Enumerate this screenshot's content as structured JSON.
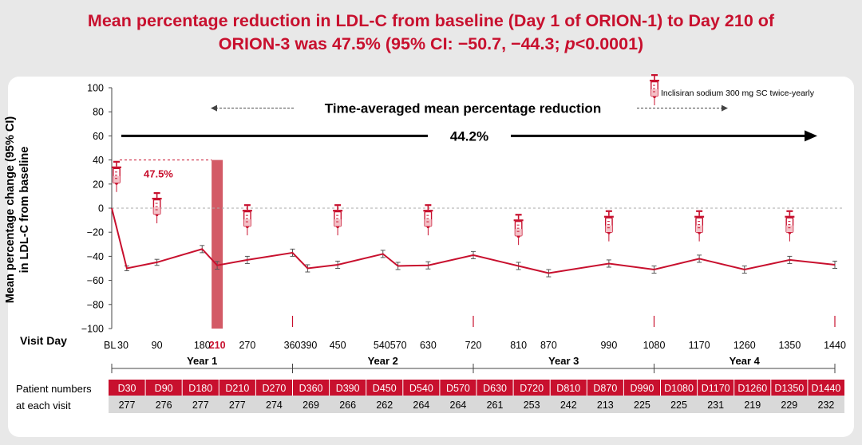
{
  "headline": {
    "line1": "Mean percentage reduction in LDL-C from baseline (Day 1 of ORION-1) to Day 210 of",
    "line2": "ORION-3 was 47.5% (95% CI: −50.7, −44.3; p<0.0001)"
  },
  "chart_data": {
    "type": "line",
    "ylabel": "Mean percentage change (95% CI) in LDL-C from baseline",
    "ylim": [
      -100,
      100
    ],
    "yticks": [
      100,
      80,
      60,
      40,
      20,
      0,
      -20,
      -40,
      -60,
      -80,
      -100
    ],
    "xlabel": "Visit Day",
    "x_tick_labels": [
      "BL",
      "30",
      "90",
      "180",
      "210",
      "270",
      "360",
      "390",
      "450",
      "540",
      "570",
      "630",
      "720",
      "810",
      "870",
      "990",
      "1080",
      "1170",
      "1260",
      "1350",
      "1440"
    ],
    "highlight_day": "210",
    "series": [
      {
        "points": [
          {
            "x": 0,
            "y": 0,
            "lo": 0,
            "hi": 0
          },
          {
            "x": 30,
            "y": -50,
            "lo": -52,
            "hi": -48
          },
          {
            "x": 90,
            "y": -45,
            "lo": -47.5,
            "hi": -42.5
          },
          {
            "x": 180,
            "y": -34,
            "lo": -37,
            "hi": -31
          },
          {
            "x": 210,
            "y": -47.5,
            "lo": -50.7,
            "hi": -44.3
          },
          {
            "x": 270,
            "y": -43,
            "lo": -46,
            "hi": -40
          },
          {
            "x": 360,
            "y": -37,
            "lo": -40,
            "hi": -34
          },
          {
            "x": 390,
            "y": -50,
            "lo": -53,
            "hi": -47
          },
          {
            "x": 450,
            "y": -47,
            "lo": -50,
            "hi": -44
          },
          {
            "x": 540,
            "y": -38,
            "lo": -41,
            "hi": -35
          },
          {
            "x": 570,
            "y": -48,
            "lo": -51,
            "hi": -45
          },
          {
            "x": 630,
            "y": -47.5,
            "lo": -50.5,
            "hi": -44.5
          },
          {
            "x": 720,
            "y": -39,
            "lo": -42,
            "hi": -36
          },
          {
            "x": 810,
            "y": -48,
            "lo": -51,
            "hi": -45
          },
          {
            "x": 870,
            "y": -54,
            "lo": -57,
            "hi": -51
          },
          {
            "x": 990,
            "y": -46,
            "lo": -49,
            "hi": -43
          },
          {
            "x": 1080,
            "y": -51,
            "lo": -54,
            "hi": -48
          },
          {
            "x": 1170,
            "y": -42,
            "lo": -45,
            "hi": -39
          },
          {
            "x": 1260,
            "y": -51,
            "lo": -54,
            "hi": -48
          },
          {
            "x": 1350,
            "y": -43,
            "lo": -46,
            "hi": -40
          },
          {
            "x": 1440,
            "y": -47,
            "lo": -50,
            "hi": -44
          }
        ]
      }
    ],
    "dose_days": [
      0,
      90,
      270,
      450,
      630,
      810,
      990,
      1170,
      1350
    ],
    "year_tick_days": [
      360,
      720,
      1080,
      1440
    ],
    "year_labels": [
      "Year 1",
      "Year 2",
      "Year 3",
      "Year 4"
    ],
    "annotations": {
      "reduction_at_210": "47.5%",
      "time_averaged_label": "Time-averaged mean percentage reduction",
      "time_averaged_value": "44.2%",
      "legend_label": "Inclisiran sodium 300 mg SC twice-yearly"
    },
    "patient_table": {
      "row_label_line1": "Patient numbers",
      "row_label_line2": "at each visit",
      "visits": [
        "D30",
        "D90",
        "D180",
        "D210",
        "D270",
        "D360",
        "D390",
        "D450",
        "D540",
        "D570",
        "D630",
        "D720",
        "D810",
        "D870",
        "D990",
        "D1080",
        "D1170",
        "D1260",
        "D1350",
        "D1440"
      ],
      "counts": [
        "277",
        "276",
        "277",
        "277",
        "274",
        "269",
        "266",
        "262",
        "264",
        "264",
        "261",
        "253",
        "242",
        "213",
        "225",
        "225",
        "231",
        "219",
        "229",
        "232"
      ]
    },
    "colors": {
      "line": "#c8102e",
      "highlight_bar": "#d35a66",
      "table_header": "#c8102e",
      "table_row": "#d9d9d9",
      "errorbar": "#555555"
    }
  }
}
